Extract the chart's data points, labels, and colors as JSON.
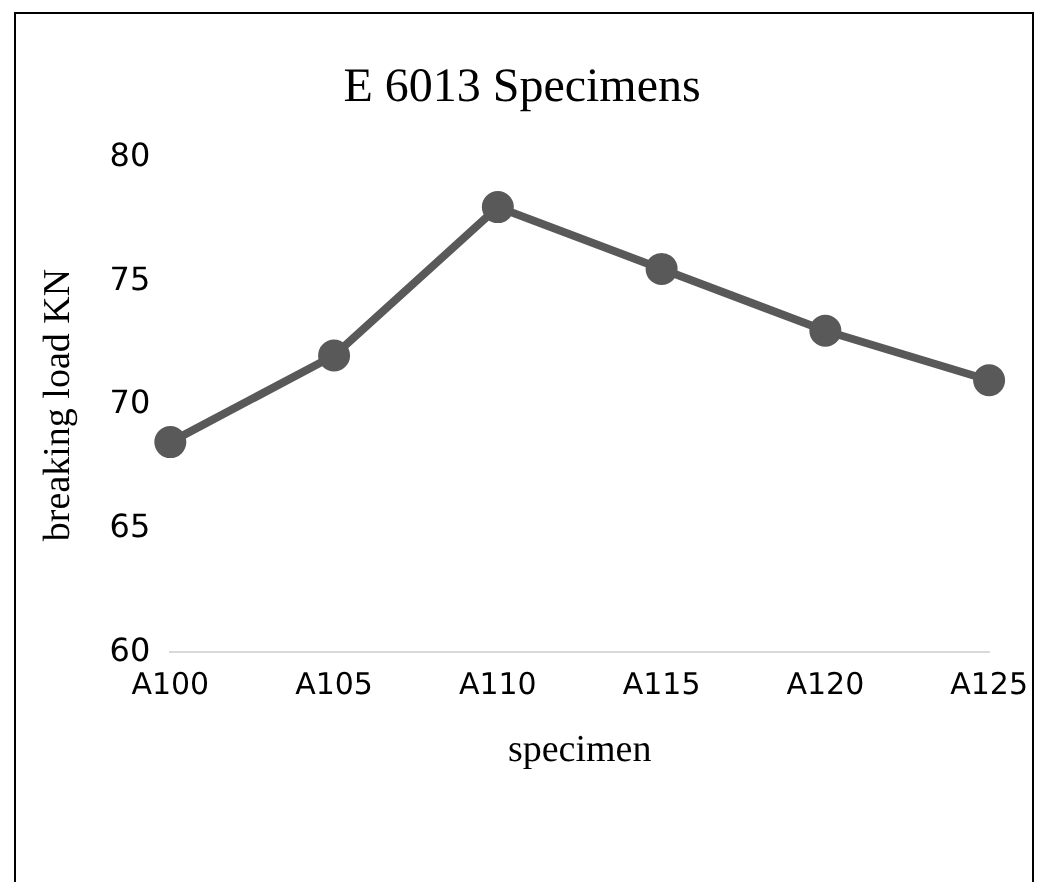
{
  "chart_data": {
    "type": "line",
    "title": "E 6013 Specimens",
    "xlabel": "specimen",
    "ylabel": "breaking load KN",
    "categories": [
      "A100",
      "A105",
      "A110",
      "A115",
      "A120",
      "A125"
    ],
    "series": [
      {
        "color": "#595959",
        "values": [
          68.5,
          72,
          78,
          75.5,
          73,
          71
        ]
      }
    ],
    "ylim": [
      60,
      80
    ],
    "yticks": [
      60,
      65,
      70,
      75,
      80
    ],
    "grid": false,
    "legend": false,
    "marker": "circle",
    "line_style": "solid"
  }
}
